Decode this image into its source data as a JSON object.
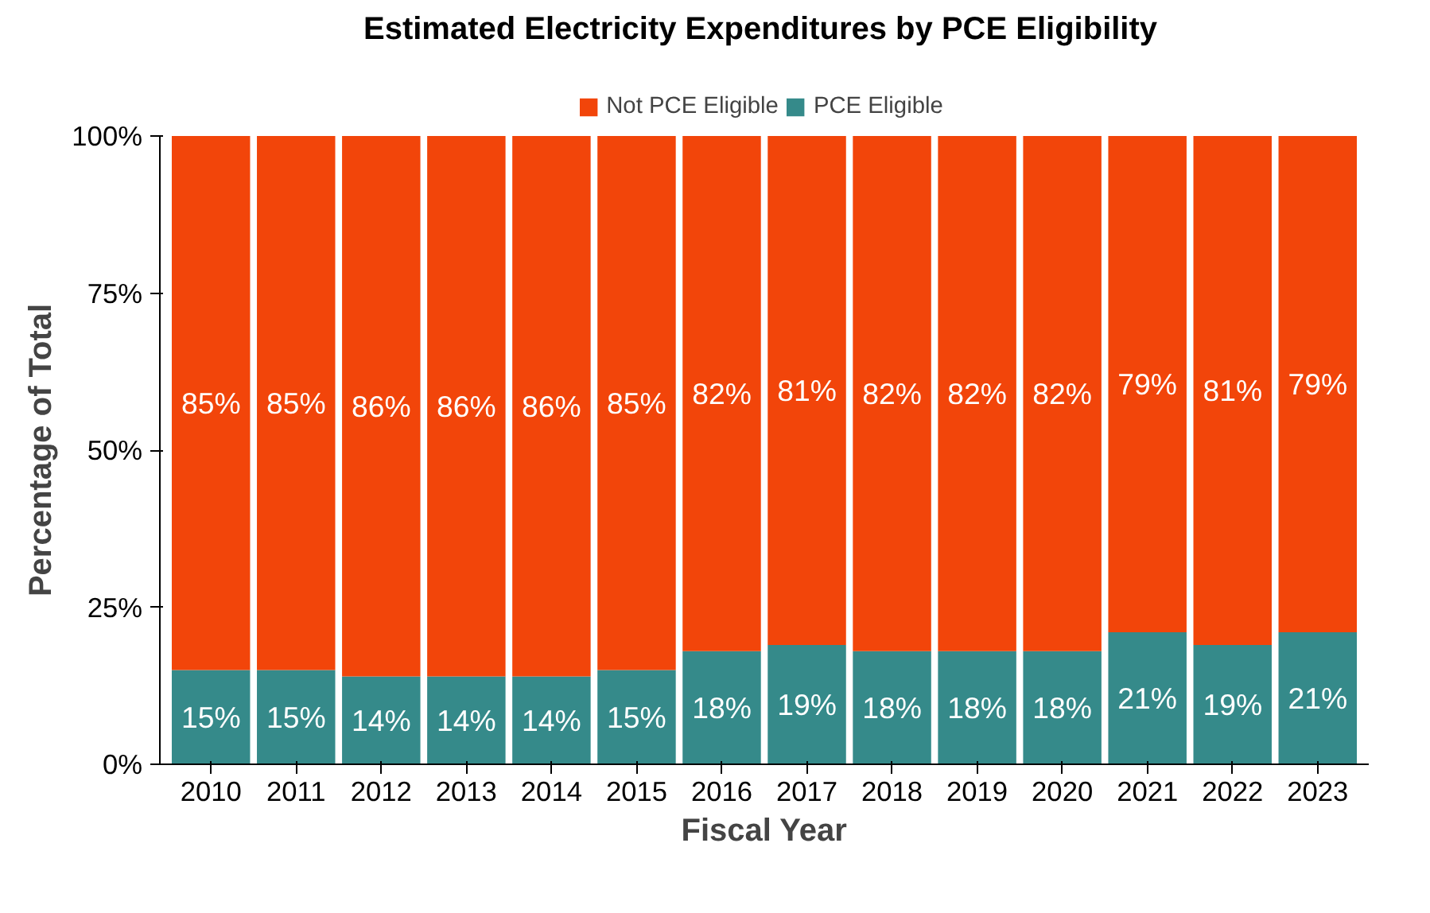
{
  "chart_data": {
    "type": "bar",
    "title": "Estimated Electricity Expenditures by PCE Eligibility",
    "xlabel": "Fiscal Year",
    "ylabel": "Percentage of Total",
    "categories": [
      "2010",
      "2011",
      "2012",
      "2013",
      "2014",
      "2015",
      "2016",
      "2017",
      "2018",
      "2019",
      "2020",
      "2021",
      "2022",
      "2023"
    ],
    "stacked": true,
    "series": [
      {
        "name": "PCE Eligible",
        "color": "#358a8a",
        "values": [
          15,
          15,
          14,
          14,
          14,
          15,
          18,
          19,
          18,
          18,
          18,
          21,
          19,
          21
        ],
        "value_labels": [
          "15%",
          "15%",
          "14%",
          "14%",
          "14%",
          "15%",
          "18%",
          "19%",
          "18%",
          "18%",
          "18%",
          "21%",
          "19%",
          "21%"
        ]
      },
      {
        "name": "Not PCE Eligible",
        "color": "#f2450a",
        "values": [
          85,
          85,
          86,
          86,
          86,
          85,
          82,
          81,
          82,
          82,
          82,
          79,
          81,
          79
        ],
        "value_labels": [
          "85%",
          "85%",
          "86%",
          "86%",
          "86%",
          "85%",
          "82%",
          "81%",
          "82%",
          "82%",
          "82%",
          "79%",
          "81%",
          "79%"
        ]
      }
    ],
    "ylim": [
      0,
      100
    ],
    "yticks": [
      {
        "value": 0,
        "label": "0%"
      },
      {
        "value": 25,
        "label": "25%"
      },
      {
        "value": 50,
        "label": "50%"
      },
      {
        "value": 75,
        "label": "75%"
      },
      {
        "value": 100,
        "label": "100%"
      }
    ],
    "grid": false,
    "legend": "top"
  }
}
